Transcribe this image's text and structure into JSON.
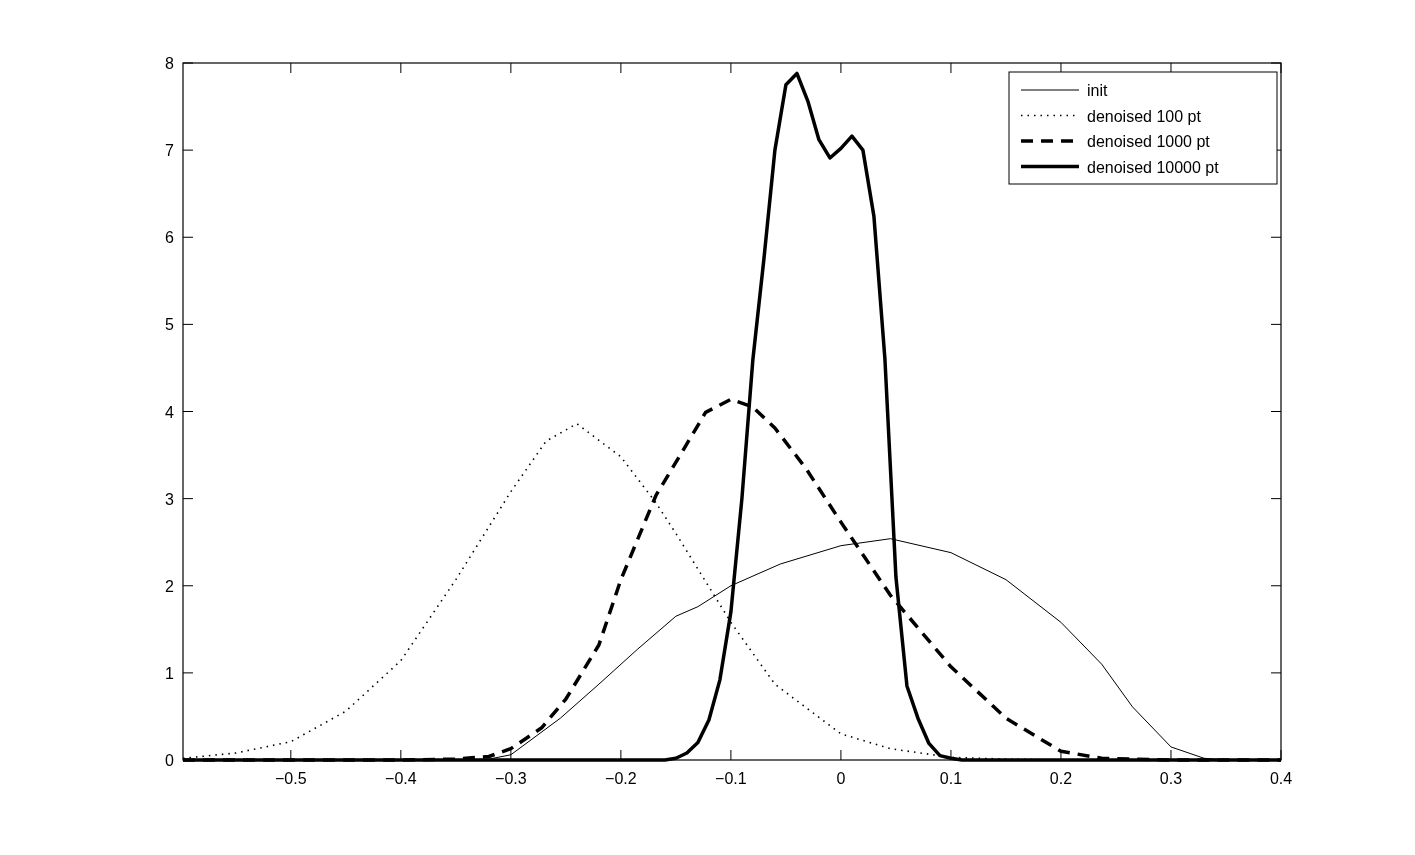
{
  "chart_data": {
    "type": "line",
    "xlim": [
      -0.598,
      0.4
    ],
    "ylim": [
      0,
      8
    ],
    "xticks": [
      -0.5,
      -0.4,
      -0.3,
      -0.2,
      -0.1,
      0,
      0.1,
      0.2,
      0.3,
      0.4
    ],
    "yticks": [
      0,
      1,
      2,
      3,
      4,
      5,
      6,
      7,
      8
    ],
    "grid": false,
    "legend": "top right",
    "marker": "none",
    "series": [
      {
        "name": "init",
        "color": "#000000",
        "line_style": "solid",
        "x": [
          -0.598,
          -0.35,
          -0.32,
          -0.3,
          -0.255,
          -0.22,
          -0.185,
          -0.15,
          -0.13,
          -0.1,
          -0.055,
          0,
          0.045,
          0.1,
          0.15,
          0.2,
          0.237,
          0.265,
          0.3,
          0.33,
          0.35,
          0.4
        ],
        "values": [
          0,
          0,
          0.01,
          0.06,
          0.48,
          0.87,
          1.27,
          1.65,
          1.76,
          2.0,
          2.25,
          2.46,
          2.54,
          2.38,
          2.07,
          1.58,
          1.1,
          0.61,
          0.15,
          0.02,
          0,
          0
        ]
      },
      {
        "name": "denoised 100 pt",
        "color": "#000000",
        "line_style": "dotted",
        "x": [
          -0.598,
          -0.55,
          -0.5,
          -0.45,
          -0.4,
          -0.35,
          -0.3,
          -0.268,
          -0.24,
          -0.2,
          -0.168,
          -0.15,
          -0.1,
          -0.06,
          0,
          0.045,
          0.1,
          0.15,
          0.2,
          0.3,
          0.4
        ],
        "values": [
          0.02,
          0.08,
          0.21,
          0.56,
          1.14,
          2.07,
          3.08,
          3.66,
          3.86,
          3.48,
          2.95,
          2.6,
          1.58,
          0.87,
          0.3,
          0.13,
          0.03,
          0.01,
          0,
          0,
          0
        ]
      },
      {
        "name": "denoised 1000 pt",
        "color": "#000000",
        "line_style": "dashed",
        "x": [
          -0.598,
          -0.4,
          -0.35,
          -0.32,
          -0.3,
          -0.272,
          -0.25,
          -0.22,
          -0.2,
          -0.168,
          -0.147,
          -0.123,
          -0.1,
          -0.08,
          -0.06,
          -0.032,
          0,
          0.045,
          0.1,
          0.15,
          0.2,
          0.237,
          0.3,
          0.4
        ],
        "values": [
          0,
          0,
          0.01,
          0.04,
          0.13,
          0.37,
          0.7,
          1.32,
          2.07,
          3.04,
          3.48,
          3.99,
          4.14,
          4.05,
          3.81,
          3.35,
          2.73,
          1.89,
          1.07,
          0.48,
          0.1,
          0.02,
          0,
          0
        ]
      },
      {
        "name": "denoised 10000 pt",
        "color": "#000000",
        "line_style": "solid",
        "x": [
          -0.598,
          -0.16,
          -0.15,
          -0.14,
          -0.13,
          -0.12,
          -0.11,
          -0.1,
          -0.09,
          -0.08,
          -0.07,
          -0.06,
          -0.05,
          -0.04,
          -0.03,
          -0.02,
          -0.01,
          0,
          0.01,
          0.02,
          0.03,
          0.04,
          0.05,
          0.06,
          0.07,
          0.08,
          0.09,
          0.1,
          0.11,
          0.4
        ],
        "values": [
          0,
          0,
          0.02,
          0.08,
          0.2,
          0.46,
          0.92,
          1.7,
          3.0,
          4.6,
          5.75,
          7.0,
          7.75,
          7.88,
          7.56,
          7.12,
          6.91,
          7.02,
          7.16,
          7.0,
          6.24,
          4.6,
          2.1,
          0.85,
          0.48,
          0.19,
          0.05,
          0.02,
          0,
          0
        ]
      }
    ]
  }
}
